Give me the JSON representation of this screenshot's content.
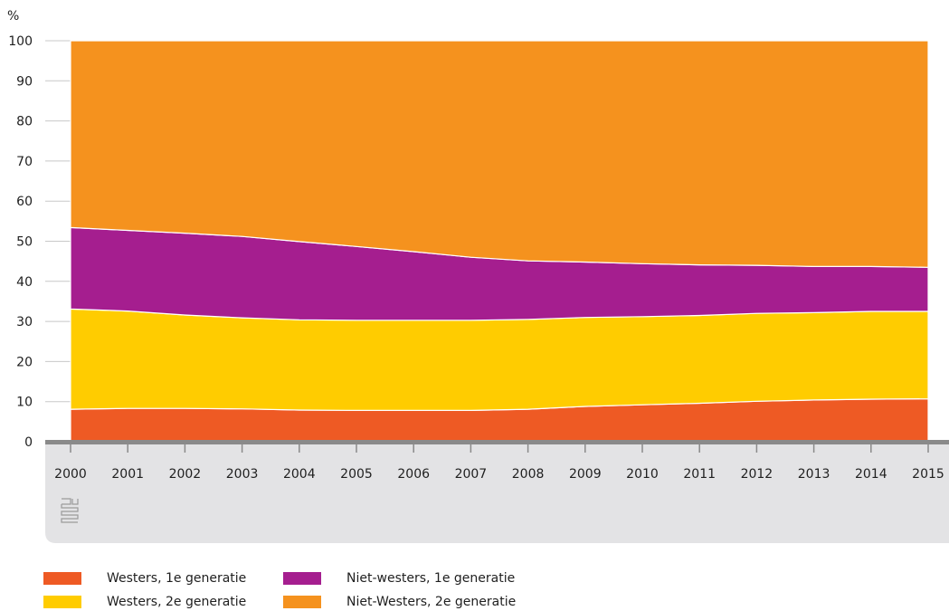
{
  "chart_data": {
    "type": "area",
    "stacked": true,
    "ylabel": "%",
    "ylim": [
      0,
      100
    ],
    "yticks": [
      0,
      10,
      20,
      30,
      40,
      50,
      60,
      70,
      80,
      90,
      100
    ],
    "grid": true,
    "x": [
      "2000",
      "2001",
      "2002",
      "2003",
      "2004",
      "2005",
      "2006",
      "2007",
      "2008",
      "2009",
      "2010",
      "2011",
      "2012",
      "2013",
      "2014",
      "2015"
    ],
    "series": [
      {
        "name": "Westers, 1e generatie",
        "color": "#EE5A24",
        "values": [
          8.1,
          8.3,
          8.3,
          8.2,
          7.9,
          7.8,
          7.8,
          7.8,
          8.1,
          8.8,
          9.2,
          9.6,
          10.1,
          10.4,
          10.6,
          10.7
        ]
      },
      {
        "name": "Westers, 2e generatie",
        "color": "#FFCC00",
        "values": [
          25.0,
          24.3,
          23.3,
          22.7,
          22.5,
          22.5,
          22.5,
          22.5,
          22.4,
          22.2,
          22.0,
          21.9,
          21.9,
          21.8,
          21.9,
          21.8
        ]
      },
      {
        "name": "Niet-westers, 1e generatie",
        "color": "#A51E8F",
        "values": [
          20.3,
          20.1,
          20.4,
          20.3,
          19.5,
          18.4,
          17.1,
          15.7,
          14.6,
          13.8,
          13.2,
          12.6,
          12.0,
          11.5,
          11.2,
          11.0
        ]
      },
      {
        "name": "Niet-Westers, 2e generatie",
        "color": "#F5921E",
        "values": [
          46.6,
          47.3,
          48.0,
          48.8,
          50.1,
          51.3,
          52.6,
          54.0,
          54.9,
          55.2,
          55.6,
          55.9,
          56.0,
          56.3,
          56.3,
          56.5
        ]
      }
    ],
    "legend": "bottom-left"
  },
  "legend": [
    {
      "label": "Westers, 1e generatie",
      "color": "#EE5A24"
    },
    {
      "label": "Niet-westers, 1e generatie",
      "color": "#A51E8F"
    },
    {
      "label": "Westers, 2e generatie",
      "color": "#FFCC00"
    },
    {
      "label": "Niet-Westers, 2e generatie",
      "color": "#F5921E"
    }
  ],
  "source_logo": "cbs-logo"
}
